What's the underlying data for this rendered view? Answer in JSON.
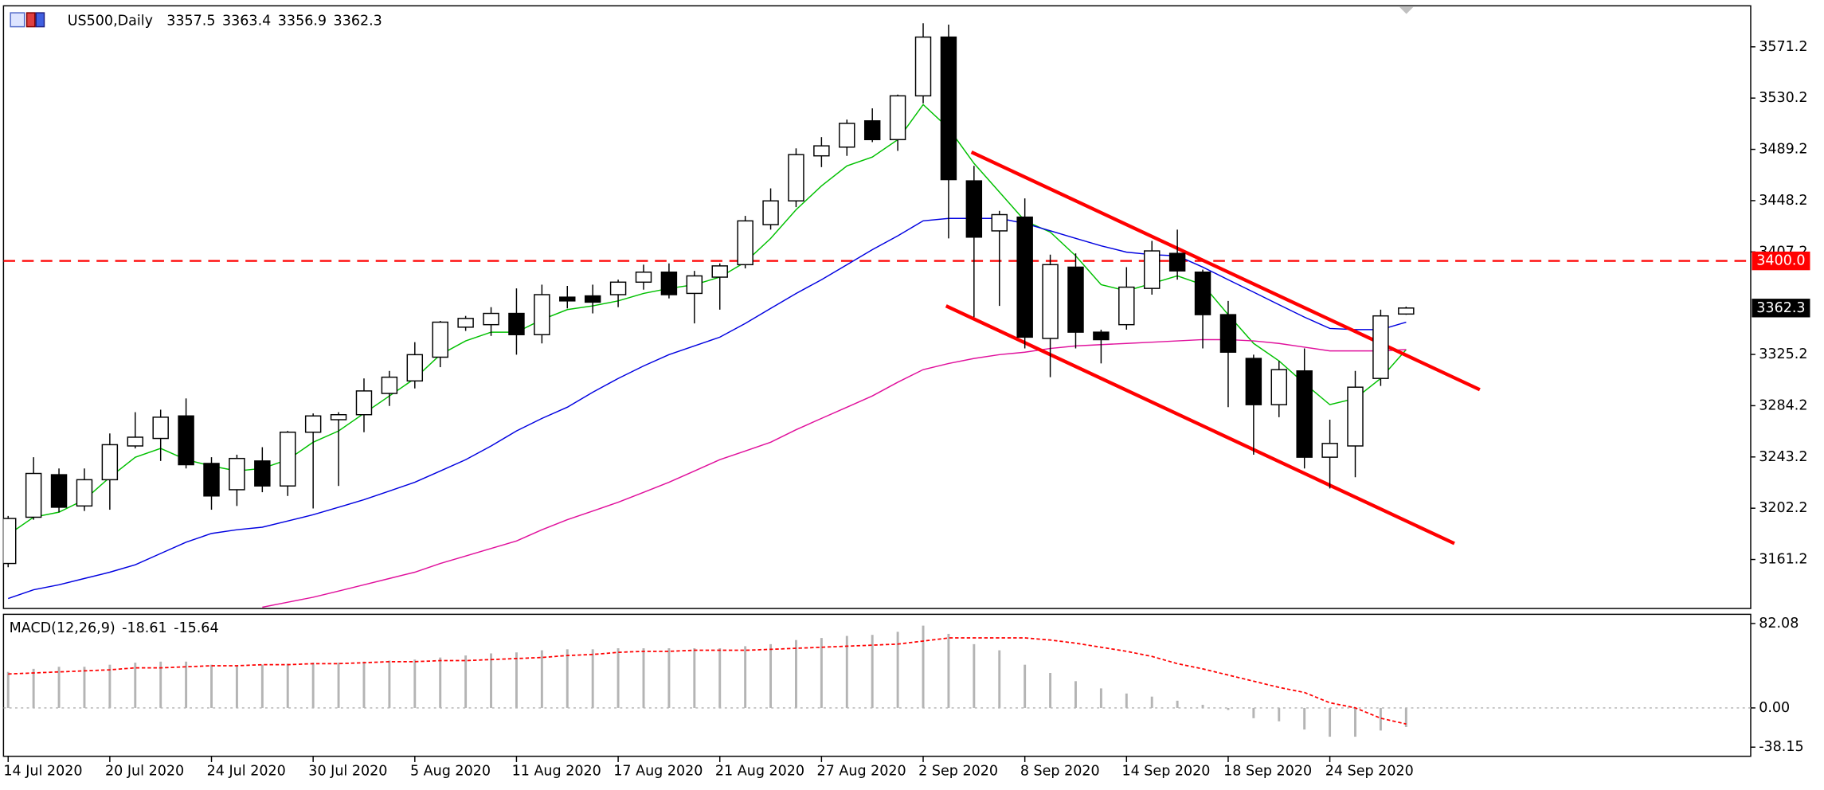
{
  "chart_data": [
    {
      "type": "candlestick",
      "title": "US500,Daily",
      "categories": [
        "14 Jul 2020",
        null,
        null,
        null,
        "20 Jul 2020",
        null,
        null,
        null,
        "24 Jul 2020",
        null,
        null,
        null,
        "30 Jul 2020",
        null,
        null,
        null,
        "5 Aug 2020",
        null,
        null,
        null,
        "11 Aug 2020",
        null,
        null,
        null,
        "17 Aug 2020",
        null,
        null,
        null,
        "21 Aug 2020",
        null,
        null,
        null,
        "27 Aug 2020",
        null,
        null,
        null,
        "2 Sep 2020",
        null,
        null,
        null,
        "8 Sep 2020",
        null,
        null,
        null,
        "14 Sep 2020",
        null,
        null,
        null,
        "18 Sep 2020",
        null,
        null,
        null,
        "24 Sep 2020",
        null,
        null,
        null
      ],
      "open": [
        3158,
        3195,
        3229,
        3204,
        3225,
        3252,
        3258,
        3276,
        3238,
        3217,
        3240,
        3220,
        3263,
        3273,
        3277,
        3294,
        3304,
        3323,
        3347,
        3349,
        3358,
        3341,
        3371,
        3372,
        3373,
        3383,
        3391,
        3374,
        3387,
        3397,
        3429,
        3448,
        3484,
        3491,
        3512,
        3497,
        3532,
        3579,
        3464,
        3424,
        3435,
        3338,
        3395,
        3343,
        3349,
        3378,
        3406,
        3391,
        3357,
        3322,
        3285,
        3312,
        3243,
        3252,
        3306,
        3357.5
      ],
      "high": [
        3196,
        3243,
        3234,
        3234,
        3262,
        3279,
        3281,
        3290,
        3243,
        3245,
        3251,
        3264,
        3278,
        3279,
        3306,
        3312,
        3335,
        3352,
        3356,
        3363,
        3378,
        3381,
        3380,
        3381,
        3385,
        3397,
        3398,
        3392,
        3398,
        3436,
        3458,
        3490,
        3499,
        3513,
        3522,
        3533,
        3590,
        3589,
        3476,
        3440,
        3450,
        3405,
        3406,
        3345,
        3395,
        3416,
        3425,
        3393,
        3368,
        3325,
        3320,
        3330,
        3273,
        3312,
        3361,
        3363.4
      ],
      "low": [
        3155,
        3193,
        3199,
        3200,
        3201,
        3250,
        3240,
        3234,
        3201,
        3204,
        3215,
        3212,
        3202,
        3220,
        3263,
        3284,
        3298,
        3315,
        3344,
        3340,
        3325,
        3334,
        3362,
        3358,
        3363,
        3377,
        3370,
        3350,
        3361,
        3394,
        3425,
        3443,
        3475,
        3484,
        3495,
        3488,
        3526,
        3418,
        3355,
        3364,
        3330,
        3307,
        3330,
        3318,
        3345,
        3373,
        3385,
        3330,
        3283,
        3245,
        3275,
        3234,
        3218,
        3227,
        3300,
        3356.9
      ],
      "close": [
        3194,
        3230,
        3203,
        3225,
        3253,
        3259,
        3275,
        3237,
        3212,
        3242,
        3220,
        3263,
        3276,
        3277,
        3296,
        3307,
        3325,
        3351,
        3354,
        3358,
        3341,
        3373,
        3368,
        3367,
        3383,
        3391,
        3373,
        3388,
        3396,
        3432,
        3448,
        3485,
        3492,
        3510,
        3497,
        3532,
        3579,
        3465,
        3419,
        3437,
        3339,
        3397,
        3343,
        3337,
        3379,
        3408,
        3392,
        3357,
        3327,
        3285,
        3313,
        3243,
        3254,
        3299,
        3356,
        3362.3
      ],
      "series": [
        {
          "color": "#00c000",
          "values": [
            3181,
            3195,
            3199,
            3209,
            3227,
            3243,
            3250,
            3241,
            3236,
            3232,
            3234,
            3241,
            3255,
            3264,
            3278,
            3292,
            3306,
            3325,
            3336,
            3343,
            3343,
            3353,
            3361,
            3364,
            3368,
            3374,
            3378,
            3381,
            3387,
            3399,
            3418,
            3441,
            3460,
            3476,
            3483,
            3497,
            3525,
            3506,
            3478,
            3455,
            3432,
            3423,
            3404,
            3381,
            3376,
            3382,
            3388,
            3381,
            3357,
            3334,
            3320,
            3302,
            3285,
            3290,
            3306,
            3329
          ]
        },
        {
          "color": "#0000e0",
          "values": [
            3130,
            3137,
            3141,
            3146,
            3151,
            3157,
            3166,
            3175,
            3182,
            3185,
            3187,
            3192,
            3197,
            3203,
            3209,
            3216,
            3223,
            3232,
            3241,
            3252,
            3264,
            3274,
            3283,
            3295,
            3306,
            3316,
            3325,
            3332,
            3339,
            3350,
            3362,
            3374,
            3385,
            3397,
            3409,
            3420,
            3432,
            3434,
            3434,
            3434,
            3430,
            3424,
            3418,
            3412,
            3407,
            3405,
            3404,
            3395,
            3385,
            3375,
            3365,
            3355,
            3346,
            3345,
            3345,
            3351
          ]
        },
        {
          "color": "#e0109c",
          "values": [
            null,
            null,
            null,
            null,
            null,
            null,
            null,
            null,
            null,
            null,
            3123,
            3127,
            3131,
            3136,
            3141,
            3146,
            3151,
            3158,
            3164,
            3170,
            3176,
            3185,
            3193,
            3200,
            3207,
            3215,
            3223,
            3232,
            3241,
            3248,
            3255,
            3265,
            3274,
            3283,
            3292,
            3303,
            3313,
            3318,
            3322,
            3325,
            3327,
            3330,
            3332,
            3333,
            3334,
            3335,
            3336,
            3337,
            3337,
            3336,
            3334,
            3331,
            3328,
            3328,
            3328,
            3329
          ]
        }
      ],
      "hlines": [
        {
          "value": 3400,
          "label": "3400.0",
          "color": "#ff0000"
        }
      ],
      "channel": [
        {
          "x": [
            37.9,
            57.9
          ],
          "y": [
            3487,
            3297
          ]
        },
        {
          "x": [
            36.9,
            56.9
          ],
          "y": [
            3364,
            3174
          ]
        }
      ],
      "channel_color": "#ff0000",
      "ylim": [
        3122,
        3604
      ],
      "yticks": [
        3161.2,
        3202.2,
        3243.2,
        3284.2,
        3325.2,
        3407.2,
        3448.2,
        3489.2,
        3530.2,
        3571.2
      ]
    },
    {
      "type": "macd",
      "title": "MACD(12,26,9)",
      "values": [
        35,
        38,
        40,
        40,
        42,
        44,
        45,
        45,
        42,
        41,
        42,
        43,
        44,
        44,
        45,
        46,
        47,
        49,
        51,
        53,
        54,
        56,
        57,
        57,
        58,
        58,
        58,
        58,
        58,
        60,
        62,
        66,
        68,
        70,
        71,
        74,
        80,
        72,
        62,
        56,
        42,
        34,
        26,
        19,
        14,
        11,
        7,
        3,
        -2,
        -10,
        -13,
        -21,
        -28,
        -28,
        -22,
        -18.61
      ],
      "signal": [
        33,
        34,
        35,
        36,
        37,
        39,
        39,
        40,
        41,
        41,
        42,
        42,
        43,
        43,
        44,
        45,
        45,
        46,
        46,
        47,
        48,
        49,
        51,
        52,
        54,
        55,
        55,
        56,
        56,
        56,
        57,
        58,
        59,
        60,
        61,
        62,
        65,
        68,
        68,
        68,
        68,
        66,
        63,
        59,
        55,
        50,
        43,
        38,
        32,
        26,
        20,
        15,
        5,
        0,
        -10,
        -15.64
      ],
      "color": "#b4b4b4",
      "signal_color": "#ff0000",
      "ylim": [
        -47,
        91
      ],
      "yticks": [
        -38.15,
        {
          "value": 0,
          "label": "0.00"
        },
        82.08
      ]
    }
  ]
}
